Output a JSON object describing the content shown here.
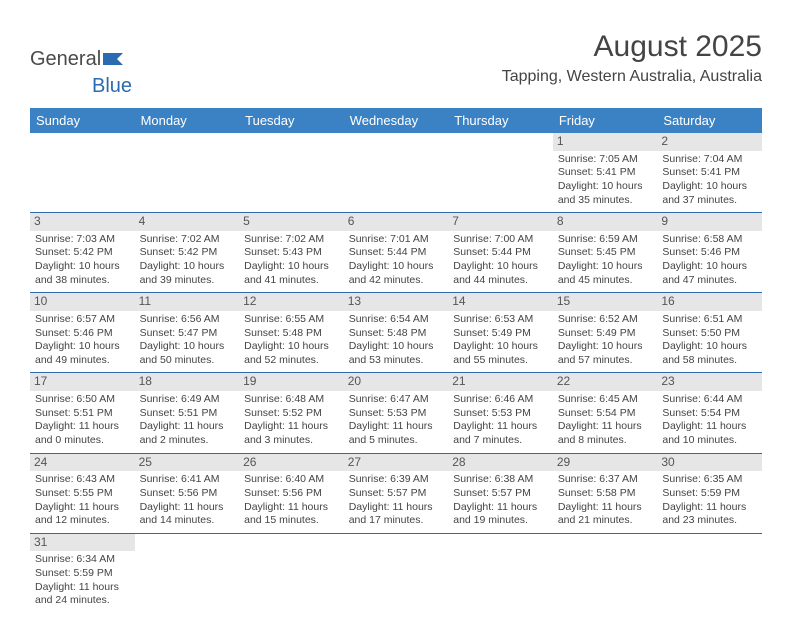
{
  "logo": {
    "part1": "General",
    "part2": "Blue"
  },
  "title": "August 2025",
  "subtitle": "Tapping, Western Australia, Australia",
  "colors": {
    "header_bg": "#3b82c4",
    "header_text": "#ffffff",
    "daynum_bg": "#e6e6e6",
    "border": "#2b6cb0",
    "text": "#444444"
  },
  "day_headers": [
    "Sunday",
    "Monday",
    "Tuesday",
    "Wednesday",
    "Thursday",
    "Friday",
    "Saturday"
  ],
  "weeks": [
    [
      null,
      null,
      null,
      null,
      null,
      {
        "n": "1",
        "sr": "Sunrise: 7:05 AM",
        "ss": "Sunset: 5:41 PM",
        "d1": "Daylight: 10 hours",
        "d2": "and 35 minutes."
      },
      {
        "n": "2",
        "sr": "Sunrise: 7:04 AM",
        "ss": "Sunset: 5:41 PM",
        "d1": "Daylight: 10 hours",
        "d2": "and 37 minutes."
      }
    ],
    [
      {
        "n": "3",
        "sr": "Sunrise: 7:03 AM",
        "ss": "Sunset: 5:42 PM",
        "d1": "Daylight: 10 hours",
        "d2": "and 38 minutes."
      },
      {
        "n": "4",
        "sr": "Sunrise: 7:02 AM",
        "ss": "Sunset: 5:42 PM",
        "d1": "Daylight: 10 hours",
        "d2": "and 39 minutes."
      },
      {
        "n": "5",
        "sr": "Sunrise: 7:02 AM",
        "ss": "Sunset: 5:43 PM",
        "d1": "Daylight: 10 hours",
        "d2": "and 41 minutes."
      },
      {
        "n": "6",
        "sr": "Sunrise: 7:01 AM",
        "ss": "Sunset: 5:44 PM",
        "d1": "Daylight: 10 hours",
        "d2": "and 42 minutes."
      },
      {
        "n": "7",
        "sr": "Sunrise: 7:00 AM",
        "ss": "Sunset: 5:44 PM",
        "d1": "Daylight: 10 hours",
        "d2": "and 44 minutes."
      },
      {
        "n": "8",
        "sr": "Sunrise: 6:59 AM",
        "ss": "Sunset: 5:45 PM",
        "d1": "Daylight: 10 hours",
        "d2": "and 45 minutes."
      },
      {
        "n": "9",
        "sr": "Sunrise: 6:58 AM",
        "ss": "Sunset: 5:46 PM",
        "d1": "Daylight: 10 hours",
        "d2": "and 47 minutes."
      }
    ],
    [
      {
        "n": "10",
        "sr": "Sunrise: 6:57 AM",
        "ss": "Sunset: 5:46 PM",
        "d1": "Daylight: 10 hours",
        "d2": "and 49 minutes."
      },
      {
        "n": "11",
        "sr": "Sunrise: 6:56 AM",
        "ss": "Sunset: 5:47 PM",
        "d1": "Daylight: 10 hours",
        "d2": "and 50 minutes."
      },
      {
        "n": "12",
        "sr": "Sunrise: 6:55 AM",
        "ss": "Sunset: 5:48 PM",
        "d1": "Daylight: 10 hours",
        "d2": "and 52 minutes."
      },
      {
        "n": "13",
        "sr": "Sunrise: 6:54 AM",
        "ss": "Sunset: 5:48 PM",
        "d1": "Daylight: 10 hours",
        "d2": "and 53 minutes."
      },
      {
        "n": "14",
        "sr": "Sunrise: 6:53 AM",
        "ss": "Sunset: 5:49 PM",
        "d1": "Daylight: 10 hours",
        "d2": "and 55 minutes."
      },
      {
        "n": "15",
        "sr": "Sunrise: 6:52 AM",
        "ss": "Sunset: 5:49 PM",
        "d1": "Daylight: 10 hours",
        "d2": "and 57 minutes."
      },
      {
        "n": "16",
        "sr": "Sunrise: 6:51 AM",
        "ss": "Sunset: 5:50 PM",
        "d1": "Daylight: 10 hours",
        "d2": "and 58 minutes."
      }
    ],
    [
      {
        "n": "17",
        "sr": "Sunrise: 6:50 AM",
        "ss": "Sunset: 5:51 PM",
        "d1": "Daylight: 11 hours",
        "d2": "and 0 minutes."
      },
      {
        "n": "18",
        "sr": "Sunrise: 6:49 AM",
        "ss": "Sunset: 5:51 PM",
        "d1": "Daylight: 11 hours",
        "d2": "and 2 minutes."
      },
      {
        "n": "19",
        "sr": "Sunrise: 6:48 AM",
        "ss": "Sunset: 5:52 PM",
        "d1": "Daylight: 11 hours",
        "d2": "and 3 minutes."
      },
      {
        "n": "20",
        "sr": "Sunrise: 6:47 AM",
        "ss": "Sunset: 5:53 PM",
        "d1": "Daylight: 11 hours",
        "d2": "and 5 minutes."
      },
      {
        "n": "21",
        "sr": "Sunrise: 6:46 AM",
        "ss": "Sunset: 5:53 PM",
        "d1": "Daylight: 11 hours",
        "d2": "and 7 minutes."
      },
      {
        "n": "22",
        "sr": "Sunrise: 6:45 AM",
        "ss": "Sunset: 5:54 PM",
        "d1": "Daylight: 11 hours",
        "d2": "and 8 minutes."
      },
      {
        "n": "23",
        "sr": "Sunrise: 6:44 AM",
        "ss": "Sunset: 5:54 PM",
        "d1": "Daylight: 11 hours",
        "d2": "and 10 minutes."
      }
    ],
    [
      {
        "n": "24",
        "sr": "Sunrise: 6:43 AM",
        "ss": "Sunset: 5:55 PM",
        "d1": "Daylight: 11 hours",
        "d2": "and 12 minutes."
      },
      {
        "n": "25",
        "sr": "Sunrise: 6:41 AM",
        "ss": "Sunset: 5:56 PM",
        "d1": "Daylight: 11 hours",
        "d2": "and 14 minutes."
      },
      {
        "n": "26",
        "sr": "Sunrise: 6:40 AM",
        "ss": "Sunset: 5:56 PM",
        "d1": "Daylight: 11 hours",
        "d2": "and 15 minutes."
      },
      {
        "n": "27",
        "sr": "Sunrise: 6:39 AM",
        "ss": "Sunset: 5:57 PM",
        "d1": "Daylight: 11 hours",
        "d2": "and 17 minutes."
      },
      {
        "n": "28",
        "sr": "Sunrise: 6:38 AM",
        "ss": "Sunset: 5:57 PM",
        "d1": "Daylight: 11 hours",
        "d2": "and 19 minutes."
      },
      {
        "n": "29",
        "sr": "Sunrise: 6:37 AM",
        "ss": "Sunset: 5:58 PM",
        "d1": "Daylight: 11 hours",
        "d2": "and 21 minutes."
      },
      {
        "n": "30",
        "sr": "Sunrise: 6:35 AM",
        "ss": "Sunset: 5:59 PM",
        "d1": "Daylight: 11 hours",
        "d2": "and 23 minutes."
      }
    ],
    [
      {
        "n": "31",
        "sr": "Sunrise: 6:34 AM",
        "ss": "Sunset: 5:59 PM",
        "d1": "Daylight: 11 hours",
        "d2": "and 24 minutes."
      },
      null,
      null,
      null,
      null,
      null,
      null
    ]
  ]
}
